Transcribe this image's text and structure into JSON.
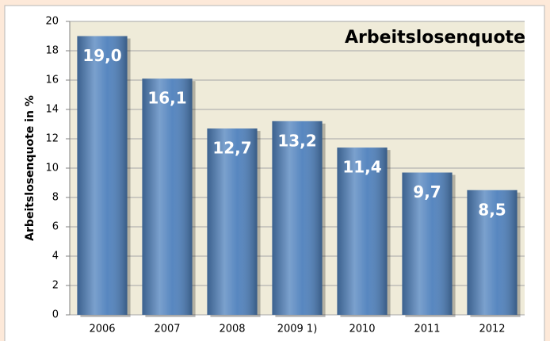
{
  "chart_data": {
    "type": "bar",
    "title": "Arbeitslosenquote",
    "y_label": "Arbeitslosenquote  in %",
    "categories": [
      "2006",
      "2007",
      "2008",
      "2009 1)",
      "2010",
      "2011",
      "2012"
    ],
    "values": [
      19.0,
      16.1,
      12.7,
      13.2,
      11.4,
      9.7,
      8.5
    ],
    "value_labels": [
      "19,0",
      "16,1",
      "12,7",
      "13,2",
      "11,4",
      "9,7",
      "8,5"
    ],
    "color": "#4f81bd",
    "ylim": [
      0,
      20
    ],
    "yticks": [
      0,
      2,
      4,
      6,
      8,
      10,
      12,
      14,
      16,
      18,
      20
    ],
    "grid": true
  }
}
